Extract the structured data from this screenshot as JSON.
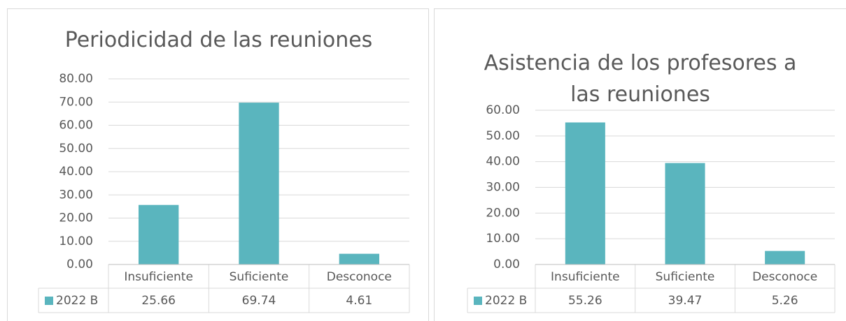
{
  "chart_data": [
    {
      "type": "bar",
      "title": "Periodicidad de las reuniones",
      "categories": [
        "Insuficiente",
        "Suficiente",
        "Desconoce"
      ],
      "series": [
        {
          "name": "2022 B",
          "color": "#5ab5be",
          "values": [
            25.66,
            69.74,
            4.61
          ]
        }
      ],
      "ylim": [
        0,
        80
      ],
      "yticks": [
        {
          "value": 0,
          "label": "0.00"
        },
        {
          "value": 10,
          "label": "10.00"
        },
        {
          "value": 20,
          "label": "20.00"
        },
        {
          "value": 30,
          "label": "30.00"
        },
        {
          "value": 40,
          "label": "40.00"
        },
        {
          "value": 50,
          "label": "50.00"
        },
        {
          "value": 60,
          "label": "60.00"
        },
        {
          "value": 70,
          "label": "70.00"
        },
        {
          "value": 80,
          "label": "80.00"
        }
      ],
      "grid": true
    },
    {
      "type": "bar",
      "title": "Asistencia de los profesores a las reuniones",
      "categories": [
        "Insuficiente",
        "Suficiente",
        "Desconoce"
      ],
      "series": [
        {
          "name": "2022 B",
          "color": "#5ab5be",
          "values": [
            55.26,
            39.47,
            5.26
          ]
        }
      ],
      "ylim": [
        0,
        60
      ],
      "yticks": [
        {
          "value": 0,
          "label": "0.00"
        },
        {
          "value": 10,
          "label": "10.00"
        },
        {
          "value": 20,
          "label": "20.00"
        },
        {
          "value": 30,
          "label": "30.00"
        },
        {
          "value": 40,
          "label": "40.00"
        },
        {
          "value": 50,
          "label": "50.00"
        },
        {
          "value": 60,
          "label": "60.00"
        }
      ],
      "grid": true
    }
  ]
}
